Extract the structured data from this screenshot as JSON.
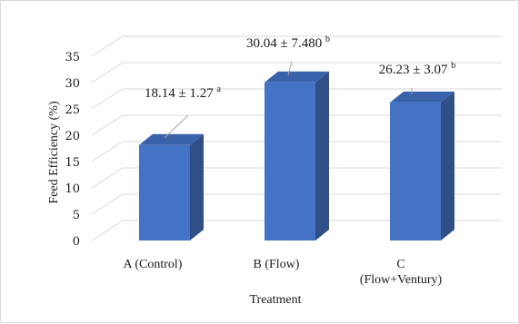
{
  "chart_data": {
    "type": "bar",
    "style": "3d-clustered-column",
    "categories": [
      "A (Control)",
      "B (Flow)",
      "C\n(Flow+Ventury)"
    ],
    "values": [
      18.14,
      30.04,
      26.23
    ],
    "data_labels": [
      {
        "text": "18.14 ± 1.27",
        "superscript": "a"
      },
      {
        "text": "30.04 ± 7.480",
        "superscript": "b"
      },
      {
        "text": "26.23 ± 3.07",
        "superscript": "b"
      }
    ],
    "xlabel": "Treatment",
    "ylabel": "Feed Efficiency  (%)",
    "ylim": [
      0,
      35
    ],
    "yticks": [
      0,
      5,
      10,
      15,
      20,
      25,
      30,
      35
    ],
    "grid": true,
    "legend": "none",
    "colors": {
      "bar_front": "#4472c4",
      "bar_side": "#2f4f86",
      "bar_top": "#3a62aa",
      "grid": "#d9d9d9",
      "leader": "#a6a6a6"
    }
  }
}
